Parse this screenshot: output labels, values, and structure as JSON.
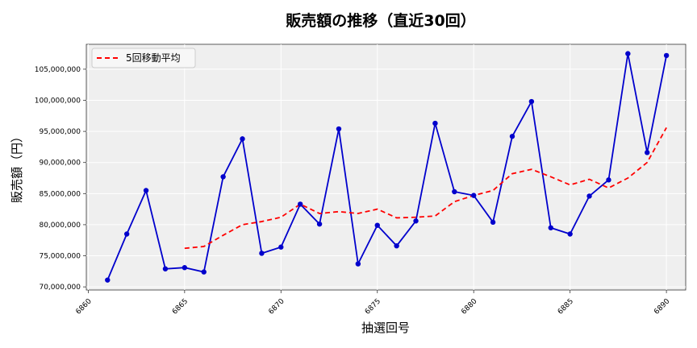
{
  "chart_data": {
    "type": "line",
    "title": "販売額の推移（直近30回）",
    "xlabel": "抽選回号",
    "ylabel": "販売額（円）",
    "xlim": [
      6859.9,
      6891.0
    ],
    "ylim": [
      69500000,
      109000000
    ],
    "x_ticks": [
      6860,
      6865,
      6870,
      6875,
      6880,
      6885,
      6890
    ],
    "y_ticks": [
      70000000,
      75000000,
      80000000,
      85000000,
      90000000,
      95000000,
      100000000,
      105000000
    ],
    "x_tick_labels": [
      "6860",
      "6865",
      "6870",
      "6875",
      "6880",
      "6885",
      "6890"
    ],
    "y_tick_labels": [
      "70,000,000",
      "75,000,000",
      "80,000,000",
      "85,000,000",
      "90,000,000",
      "95,000,000",
      "100,000,000",
      "105,000,000"
    ],
    "grid": true,
    "legend_position": "top-left",
    "series": [
      {
        "name": "",
        "color": "#0000cc",
        "style": "solid-with-markers",
        "x": [
          6861,
          6862,
          6863,
          6864,
          6865,
          6866,
          6867,
          6868,
          6869,
          6870,
          6871,
          6872,
          6873,
          6874,
          6875,
          6876,
          6877,
          6878,
          6879,
          6880,
          6881,
          6882,
          6883,
          6884,
          6885,
          6886,
          6887,
          6888,
          6889,
          6890
        ],
        "values": [
          71100000,
          78500000,
          85500000,
          72900000,
          73100000,
          72400000,
          87700000,
          93800000,
          75400000,
          76400000,
          83300000,
          80100000,
          95400000,
          73700000,
          79900000,
          76600000,
          80600000,
          96300000,
          85300000,
          84700000,
          80400000,
          94200000,
          99800000,
          79500000,
          78500000,
          84600000,
          87200000,
          107500000,
          91600000,
          107200000
        ]
      },
      {
        "name": "5回移動平均",
        "color": "#ff0000",
        "style": "dashed",
        "x": [
          6865,
          6866,
          6867,
          6868,
          6869,
          6870,
          6871,
          6872,
          6873,
          6874,
          6875,
          6876,
          6877,
          6878,
          6879,
          6880,
          6881,
          6882,
          6883,
          6884,
          6885,
          6886,
          6887,
          6888,
          6889,
          6890
        ],
        "values": [
          76200000,
          76500000,
          78300000,
          80000000,
          80500000,
          81200000,
          83300000,
          81800000,
          82100000,
          81800000,
          82500000,
          81100000,
          81200000,
          81400000,
          83700000,
          84700000,
          85500000,
          88200000,
          88900000,
          87700000,
          86400000,
          87300000,
          85900000,
          87500000,
          90000000,
          95600000
        ]
      }
    ]
  }
}
